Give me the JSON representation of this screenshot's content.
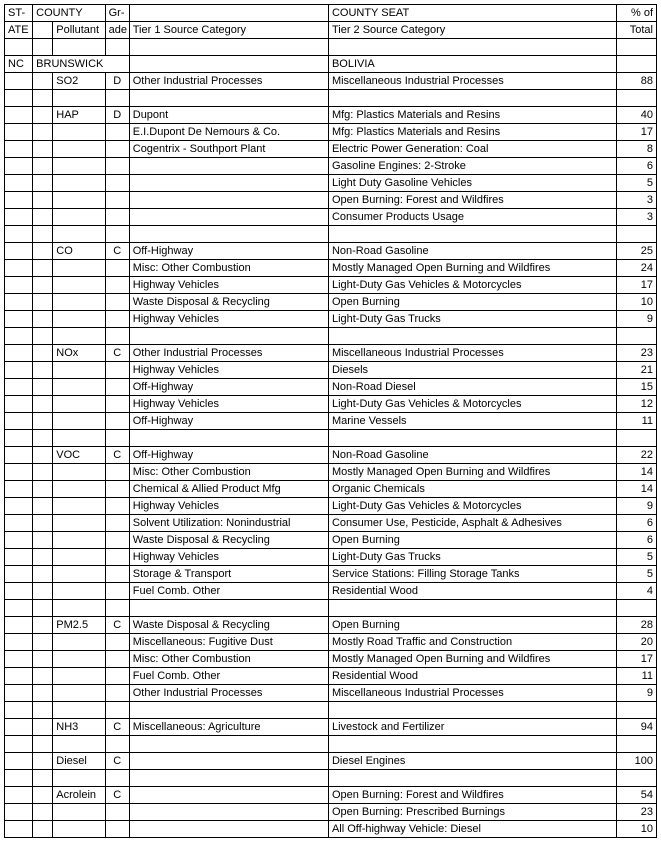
{
  "headers": {
    "r1": {
      "state": "ST-",
      "county": "COUNTY",
      "grade": "Gr-",
      "seat": "COUNTY SEAT",
      "pct": "% of"
    },
    "r2": {
      "state": "ATE",
      "poll": "Pollutant",
      "grade": "ade",
      "t1": "Tier 1 Source Category",
      "t2": "Tier 2 Source Category",
      "pct": "Total"
    }
  },
  "county_row": {
    "state": "NC",
    "county": "BRUNSWICK",
    "seat": "BOLIVIA"
  },
  "rows": [
    {
      "poll": "SO2",
      "grade": "D",
      "t1": "Other Industrial Processes",
      "t2": "Miscellaneous Industrial Processes",
      "pct": "88"
    },
    {
      "blank": true
    },
    {
      "poll": "HAP",
      "grade": "D",
      "t1": "Dupont",
      "t2": "Mfg: Plastics Materials and Resins",
      "pct": "40"
    },
    {
      "t1": "E.I.Dupont De Nemours & Co.",
      "t2": "Mfg: Plastics Materials and Resins",
      "pct": "17"
    },
    {
      "t1": "Cogentrix - Southport Plant",
      "t2": "Electric Power Generation: Coal",
      "pct": "8"
    },
    {
      "t2": "Gasoline Engines: 2-Stroke",
      "pct": "6"
    },
    {
      "t2": "Light Duty Gasoline Vehicles",
      "pct": "5"
    },
    {
      "t2": "Open Burning:  Forest and Wildfires",
      "pct": "3"
    },
    {
      "t2": "Consumer Products Usage",
      "pct": "3"
    },
    {
      "blank": true
    },
    {
      "poll": "CO",
      "grade": "C",
      "t1": "Off-Highway",
      "t2": "Non-Road Gasoline",
      "pct": "25"
    },
    {
      "t1": "Misc: Other Combustion",
      "t2": "Mostly Managed Open Burning and Wildfires",
      "pct": "24"
    },
    {
      "t1": "Highway Vehicles",
      "t2": "Light-Duty Gas Vehicles & Motorcycles",
      "pct": "17"
    },
    {
      "t1": "Waste Disposal & Recycling",
      "t2": "Open Burning",
      "pct": "10"
    },
    {
      "t1": "Highway Vehicles",
      "t2": "Light-Duty Gas Trucks",
      "pct": "9"
    },
    {
      "blank": true
    },
    {
      "poll": "NOx",
      "grade": "C",
      "t1": "Other Industrial Processes",
      "t2": "Miscellaneous Industrial Processes",
      "pct": "23"
    },
    {
      "t1": "Highway Vehicles",
      "t2": "Diesels",
      "pct": "21"
    },
    {
      "t1": "Off-Highway",
      "t2": "Non-Road Diesel",
      "pct": "15"
    },
    {
      "t1": "Highway Vehicles",
      "t2": "Light-Duty Gas Vehicles & Motorcycles",
      "pct": "12"
    },
    {
      "t1": "Off-Highway",
      "t2": "Marine Vessels",
      "pct": "11"
    },
    {
      "blank": true
    },
    {
      "poll": "VOC",
      "grade": "C",
      "t1": "Off-Highway",
      "t2": "Non-Road Gasoline",
      "pct": "22"
    },
    {
      "t1": "Misc: Other Combustion",
      "t2": "Mostly Managed Open Burning and Wildfires",
      "pct": "14"
    },
    {
      "t1": "Chemical & Allied Product Mfg",
      "t2": "Organic Chemicals",
      "pct": "14"
    },
    {
      "t1": "Highway Vehicles",
      "t2": "Light-Duty Gas Vehicles & Motorcycles",
      "pct": "9"
    },
    {
      "t1": "Solvent Utilization: Nonindustrial",
      "t2": "Consumer Use, Pesticide, Asphalt & Adhesives",
      "pct": "6"
    },
    {
      "t1": "Waste Disposal & Recycling",
      "t2": "Open Burning",
      "pct": "6"
    },
    {
      "t1": "Highway Vehicles",
      "t2": "Light-Duty Gas Trucks",
      "pct": "5"
    },
    {
      "t1": "Storage & Transport",
      "t2": "Service Stations: Filling Storage Tanks",
      "pct": "5"
    },
    {
      "t1": "Fuel Comb. Other",
      "t2": "Residential Wood",
      "pct": "4"
    },
    {
      "blank": true
    },
    {
      "poll": "PM2.5",
      "grade": "C",
      "t1": "Waste Disposal & Recycling",
      "t2": "Open Burning",
      "pct": "28"
    },
    {
      "t1": "Miscellaneous: Fugitive Dust",
      "t2": "Mostly Road Traffic and Construction",
      "pct": "20"
    },
    {
      "t1": "Misc: Other Combustion",
      "t2": "Mostly Managed Open Burning and Wildfires",
      "pct": "17"
    },
    {
      "t1": "Fuel Comb. Other",
      "t2": "Residential Wood",
      "pct": "11"
    },
    {
      "t1": "Other Industrial Processes",
      "t2": "Miscellaneous Industrial Processes",
      "pct": "9"
    },
    {
      "blank": true
    },
    {
      "poll": "NH3",
      "grade": "C",
      "t1": "Miscellaneous: Agriculture",
      "t2": "Livestock and Fertilizer",
      "pct": "94"
    },
    {
      "blank": true
    },
    {
      "poll": "Diesel",
      "grade": "C",
      "t2": "Diesel Engines",
      "pct": "100"
    },
    {
      "blank": true
    },
    {
      "poll": "Acrolein",
      "grade": "C",
      "t2": "Open Burning:  Forest and Wildfires",
      "pct": "54"
    },
    {
      "t2": "Open Burning:  Prescribed Burnings",
      "pct": "23"
    },
    {
      "t2": "All Off-highway Vehicle: Diesel",
      "pct": "10"
    }
  ]
}
